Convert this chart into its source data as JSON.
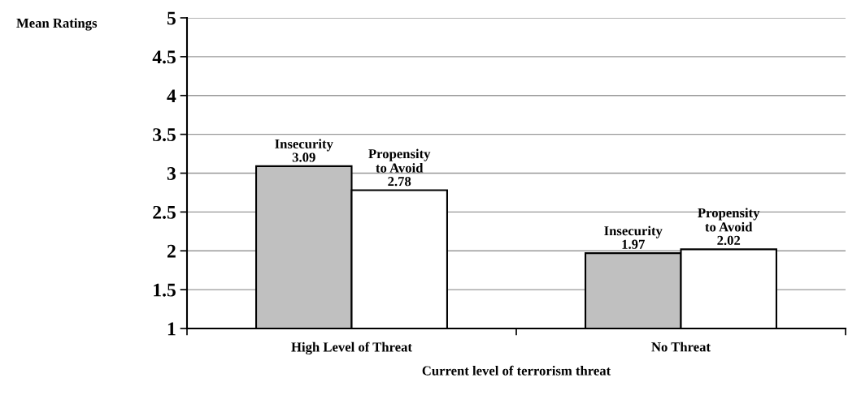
{
  "chart_data": {
    "type": "bar",
    "xlabel": "Current level of terrorism threat",
    "ylabel": "Mean Ratings",
    "categories": [
      "High Level of Threat",
      "No Threat"
    ],
    "series": [
      {
        "name": "Insecurity",
        "color": "#c0c0c0",
        "values": [
          3.09,
          1.97
        ]
      },
      {
        "name": "Propensity\nto Avoid",
        "color": "#ffffff",
        "values": [
          2.78,
          2.02
        ]
      }
    ],
    "ylim": [
      1,
      5
    ],
    "yticks": [
      1,
      1.5,
      2,
      2.5,
      3,
      3.5,
      4,
      4.5,
      5
    ],
    "grid": "y",
    "data_labels": true,
    "legend": false
  }
}
